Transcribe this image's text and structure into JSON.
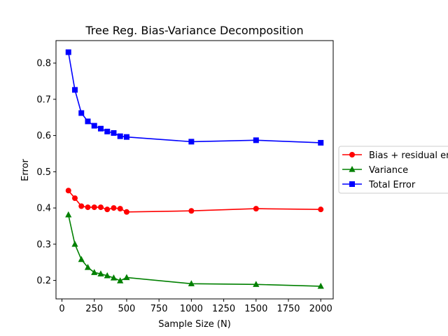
{
  "chart_data": {
    "type": "line",
    "title": "Tree Reg. Bias-Variance Decomposition",
    "xlabel": "Sample Size (N)",
    "ylabel": "Error",
    "xlim": [
      -46,
      2096
    ],
    "ylim": [
      0.149,
      0.862
    ],
    "xticks": [
      0,
      250,
      500,
      750,
      1000,
      1250,
      1500,
      1750,
      2000
    ],
    "yticks": [
      0.2,
      0.3,
      0.4,
      0.5,
      0.6,
      0.7,
      0.8
    ],
    "grid": false,
    "legend_position": "right, outside plot",
    "x": [
      50,
      100,
      150,
      200,
      250,
      300,
      350,
      400,
      450,
      500,
      1000,
      1500,
      2000
    ],
    "series": [
      {
        "name": "Bias + residual error",
        "color": "#ff0000",
        "marker": "circle",
        "values": [
          0.448,
          0.427,
          0.405,
          0.402,
          0.402,
          0.402,
          0.396,
          0.4,
          0.398,
          0.389,
          0.392,
          0.398,
          0.396
        ]
      },
      {
        "name": "Variance",
        "color": "#008000",
        "marker": "triangle",
        "values": [
          0.381,
          0.3,
          0.258,
          0.236,
          0.222,
          0.218,
          0.213,
          0.207,
          0.199,
          0.208,
          0.191,
          0.189,
          0.184
        ]
      },
      {
        "name": "Total Error",
        "color": "#0000ff",
        "marker": "square",
        "values": [
          0.83,
          0.726,
          0.662,
          0.639,
          0.627,
          0.619,
          0.611,
          0.607,
          0.598,
          0.596,
          0.583,
          0.587,
          0.58
        ]
      }
    ]
  }
}
